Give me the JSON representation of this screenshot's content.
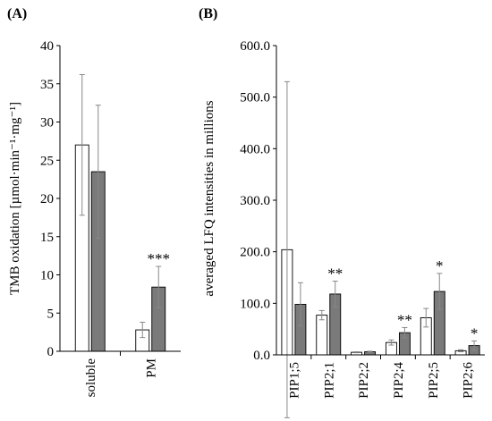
{
  "chart_data": [
    {
      "type": "bar",
      "panel_label": "(A)",
      "ylabel": "TMB oxidation [µmol·min⁻¹·mg⁻¹]",
      "ylim": [
        0,
        40
      ],
      "yticks": [
        "0",
        "5",
        "10",
        "15",
        "20",
        "25",
        "30",
        "35",
        "40"
      ],
      "ytick_values": [
        0,
        5,
        10,
        15,
        20,
        25,
        30,
        35,
        40
      ],
      "categories": [
        "soluble",
        "PM"
      ],
      "series": [
        {
          "values": [
            27.0,
            2.8
          ],
          "errors": [
            9.2,
            1.0
          ],
          "color": "#ffffff"
        },
        {
          "values": [
            23.5,
            8.4
          ],
          "errors": [
            8.7,
            2.7
          ],
          "color": "#7a7a7a"
        }
      ],
      "annotations": [
        {
          "category": "PM",
          "series": 1,
          "text": "***"
        }
      ]
    },
    {
      "type": "bar",
      "panel_label": "(B)",
      "ylabel": "averaged LFQ intensities in millions",
      "ylim": [
        0,
        600
      ],
      "yticks": [
        "0.0",
        "100.0",
        "200.0",
        "300.0",
        "400.0",
        "500.0",
        "600.0"
      ],
      "ytick_values": [
        0,
        100,
        200,
        300,
        400,
        500,
        600
      ],
      "categories": [
        "PIP1;5",
        "PIP2;1",
        "PIP2;2",
        "PIP2;4",
        "PIP2;5",
        "PIP2;6"
      ],
      "series": [
        {
          "values": [
            204,
            77,
            5,
            24,
            72,
            8
          ],
          "errors": [
            326,
            9,
            1,
            5,
            18,
            2
          ],
          "color": "#ffffff"
        },
        {
          "values": [
            98,
            118,
            6,
            43,
            123,
            18
          ],
          "errors": [
            42,
            25,
            1,
            10,
            35,
            9
          ],
          "color": "#7a7a7a"
        }
      ],
      "annotations": [
        {
          "category": "PIP2;1",
          "series": 1,
          "text": "**"
        },
        {
          "category": "PIP2;4",
          "series": 1,
          "text": "**"
        },
        {
          "category": "PIP2;5",
          "series": 1,
          "text": "*"
        },
        {
          "category": "PIP2;6",
          "series": 1,
          "text": "*"
        }
      ]
    }
  ]
}
